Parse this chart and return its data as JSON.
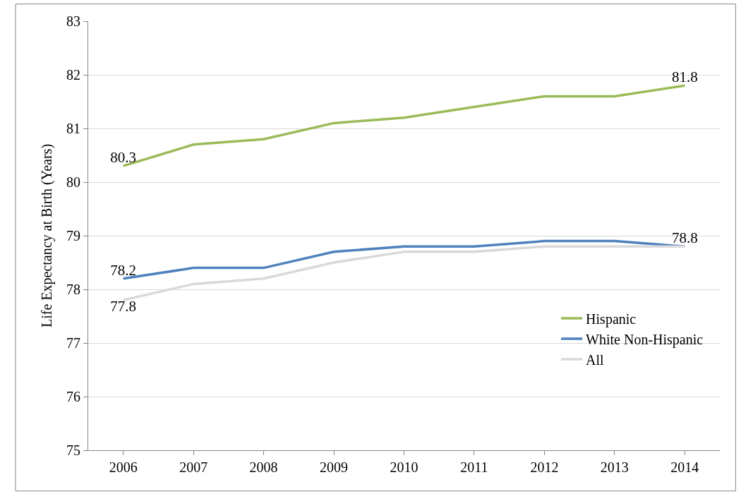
{
  "chart_data": {
    "type": "line",
    "ylabel": "Life Expectancy at Birth (Years)",
    "categories": [
      "2006",
      "2007",
      "2008",
      "2009",
      "2010",
      "2011",
      "2012",
      "2013",
      "2014"
    ],
    "series": [
      {
        "name": "Hispanic",
        "color": "#9bbb59",
        "values": [
          80.3,
          80.7,
          80.8,
          81.1,
          81.2,
          81.4,
          81.6,
          81.6,
          81.8
        ],
        "value_labels": [
          "80.3",
          null,
          null,
          null,
          null,
          null,
          null,
          null,
          "81.8"
        ]
      },
      {
        "name": "White Non-Hispanic",
        "color": "#4f81bd",
        "values": [
          78.2,
          78.4,
          78.4,
          78.7,
          78.8,
          78.8,
          78.9,
          78.9,
          78.8
        ],
        "value_labels": [
          "78.2",
          null,
          null,
          null,
          null,
          null,
          null,
          null,
          "78.8"
        ]
      },
      {
        "name": "All",
        "color": "#d9d9d9",
        "values": [
          77.8,
          78.1,
          78.2,
          78.5,
          78.7,
          78.7,
          78.8,
          78.8,
          78.8
        ],
        "value_labels": [
          "77.8",
          null,
          null,
          null,
          null,
          null,
          null,
          null,
          null
        ]
      }
    ],
    "ylim": [
      75,
      83
    ],
    "yticks": [
      75,
      76,
      77,
      78,
      79,
      80,
      81,
      82,
      83
    ],
    "grid": "y",
    "legend": "bottom right",
    "marker": "none",
    "line_style": "solid"
  }
}
